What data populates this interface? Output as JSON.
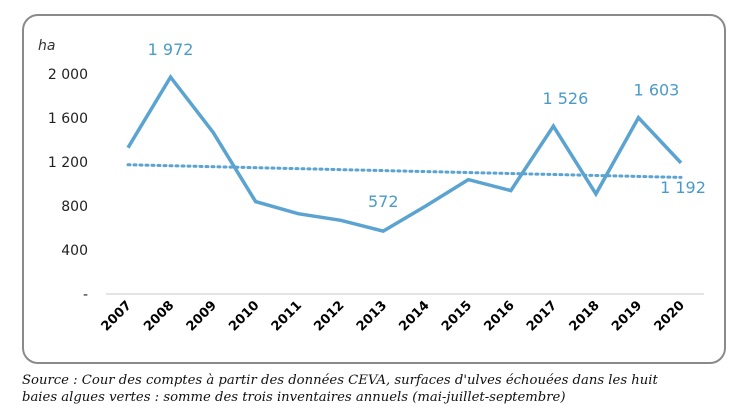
{
  "chart_data": {
    "type": "line",
    "unit_label": "ha",
    "x": [
      "2007",
      "2008",
      "2009",
      "2010",
      "2011",
      "2012",
      "2013",
      "2014",
      "2015",
      "2016",
      "2017",
      "2018",
      "2019",
      "2020"
    ],
    "series": [
      {
        "values": [
          1330,
          1972,
          1470,
          840,
          730,
          670,
          572,
          800,
          1040,
          940,
          1526,
          910,
          1603,
          1192
        ],
        "color": "#5ba3d0"
      }
    ],
    "trend": {
      "start": 1175,
      "end": 1060,
      "color": "#5ba3d0"
    },
    "y_ticks": [
      {
        "value": 0,
        "label": "-"
      },
      {
        "value": 400,
        "label": "400"
      },
      {
        "value": 800,
        "label": "800"
      },
      {
        "value": 1200,
        "label": "1 200"
      },
      {
        "value": 1600,
        "label": "1 600"
      },
      {
        "value": 2000,
        "label": "2 000"
      }
    ],
    "ylim": [
      0,
      2000
    ],
    "grid": false,
    "data_labels": [
      {
        "index": 1,
        "text": "1 972"
      },
      {
        "index": 6,
        "text": "572"
      },
      {
        "index": 10,
        "text": "1 526"
      },
      {
        "index": 12,
        "text": "1 603"
      },
      {
        "index": 13,
        "text": "1 192"
      }
    ]
  },
  "source": {
    "line1": "Source : Cour des comptes à partir des données CEVA, surfaces d'ulves échouées dans les huit",
    "line2": "baies algues vertes : somme des trois inventaires annuels (mai-juillet-septembre)"
  }
}
